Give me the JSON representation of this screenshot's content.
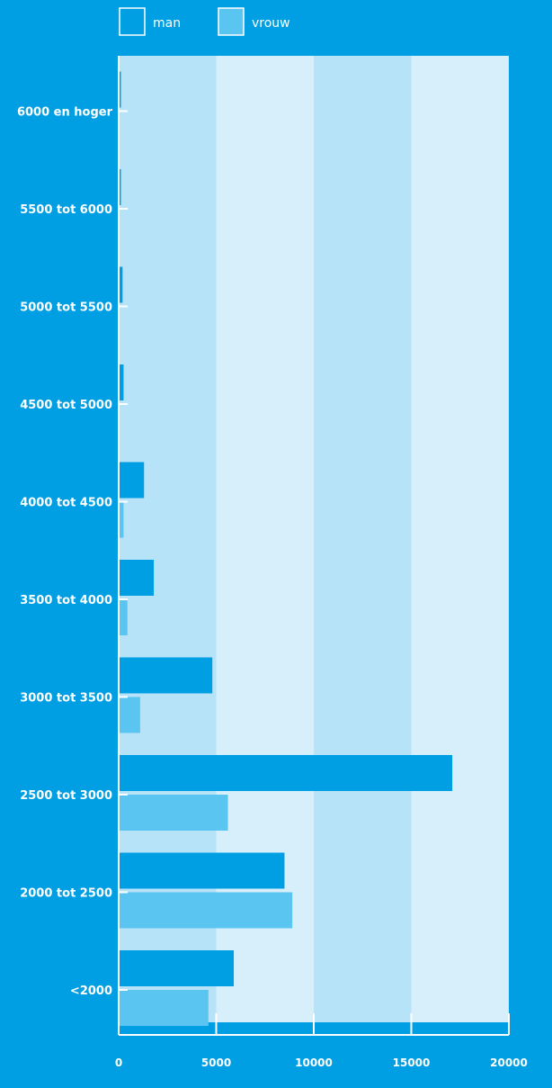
{
  "colors": {
    "background": "#009fe3",
    "band_dark": "#b7e3f8",
    "band_light": "#d6effb",
    "man": "#009fe3",
    "vrouw": "#5bc5f2",
    "text": "#ffffff",
    "axis": "#ffffff"
  },
  "chart_data": {
    "type": "bar",
    "orientation": "horizontal",
    "categories": [
      "<2000",
      "2000 tot 2500",
      "2500 tot 3000",
      "3000 tot 3500",
      "3500 tot 4000",
      "4000 tot 4500",
      "4500 tot 5000",
      "5000 tot 5500",
      "5500 tot 6000",
      "6000 en hoger"
    ],
    "series": [
      {
        "name": "man",
        "values": [
          5900,
          8500,
          17100,
          4800,
          1800,
          1300,
          250,
          200,
          60,
          40
        ]
      },
      {
        "name": "vrouw",
        "values": [
          4600,
          8900,
          5600,
          1100,
          450,
          250,
          0,
          0,
          0,
          0
        ]
      }
    ],
    "xlim": [
      0,
      20000
    ],
    "xticks": [
      "0",
      "5000",
      "10000",
      "15000",
      "20000"
    ],
    "xtick_values": [
      0,
      5000,
      10000,
      15000,
      20000
    ],
    "title": "",
    "xlabel": "",
    "ylabel": "",
    "legend": "top-left",
    "grid": "alternating-bands"
  }
}
